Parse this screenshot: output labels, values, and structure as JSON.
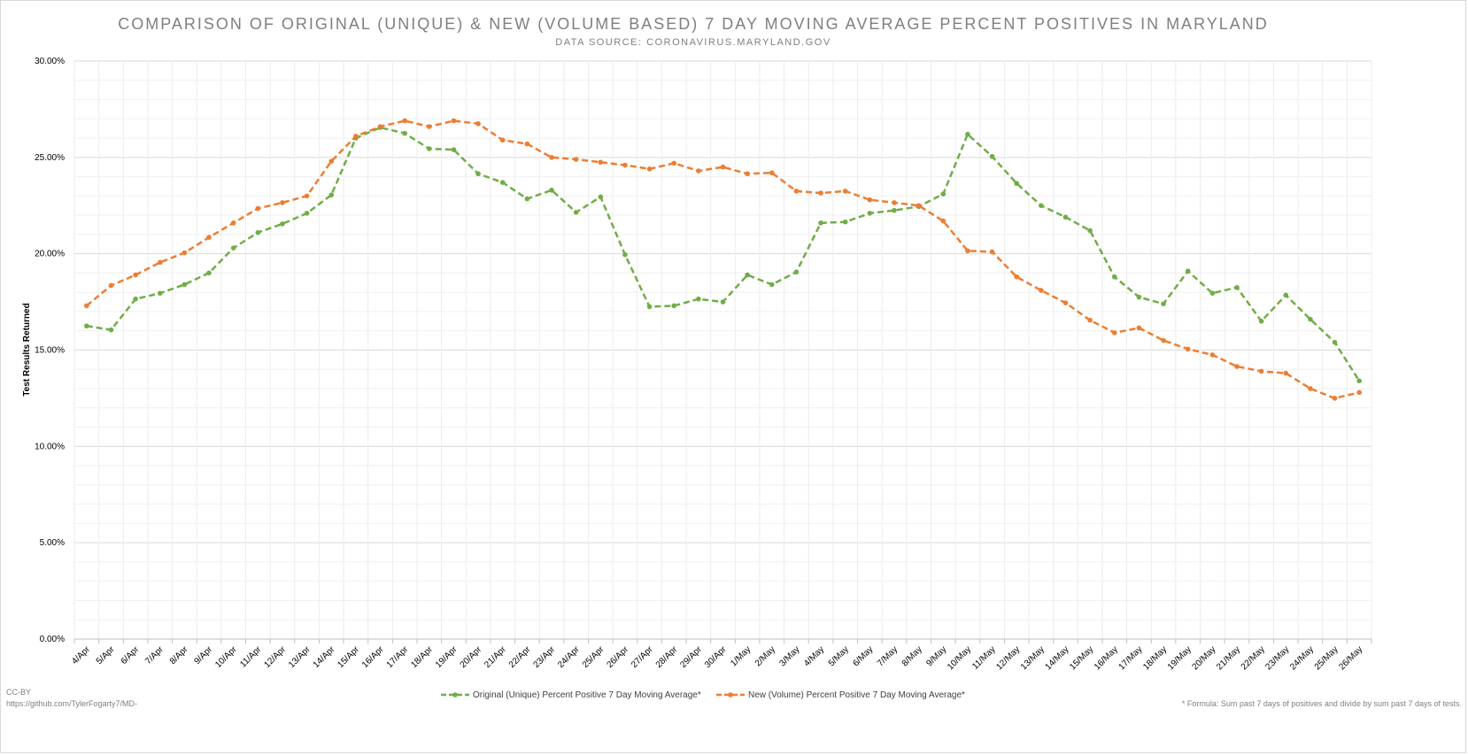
{
  "chart_data": {
    "type": "line",
    "title": "COMPARISON OF ORIGINAL (UNIQUE) & NEW (VOLUME BASED) 7 DAY MOVING AVERAGE PERCENT POSITIVES IN MARYLAND",
    "subtitle": "DATA SOURCE: CORONAVIRUS.MARYLAND.GOV",
    "xlabel": "",
    "ylabel": "Test Results Returned",
    "ylim": [
      0,
      0.3
    ],
    "yticks": [
      "0.00%",
      "5.00%",
      "10.00%",
      "15.00%",
      "20.00%",
      "25.00%",
      "30.00%"
    ],
    "grid": true,
    "legend_position": "bottom",
    "categories": [
      "4/Apr",
      "5/Apr",
      "6/Apr",
      "7/Apr",
      "8/Apr",
      "9/Apr",
      "10/Apr",
      "11/Apr",
      "12/Apr",
      "13/Apr",
      "14/Apr",
      "15/Apr",
      "16/Apr",
      "17/Apr",
      "18/Apr",
      "19/Apr",
      "20/Apr",
      "21/Apr",
      "22/Apr",
      "23/Apr",
      "24/Apr",
      "25/Apr",
      "26/Apr",
      "27/Apr",
      "28/Apr",
      "29/Apr",
      "30/Apr",
      "1/May",
      "2/May",
      "3/May",
      "4/May",
      "5/May",
      "6/May",
      "7/May",
      "8/May",
      "9/May",
      "10/May",
      "11/May",
      "12/May",
      "13/May",
      "14/May",
      "15/May",
      "16/May",
      "17/May",
      "18/May",
      "19/May",
      "20/May",
      "21/May",
      "22/May",
      "23/May",
      "24/May",
      "25/May",
      "26/May"
    ],
    "series": [
      {
        "name": "Original (Unique) Percent Positive 7 Day Moving Average*",
        "color": "#70ad47",
        "values": [
          0.1625,
          0.1605,
          0.1765,
          0.1795,
          0.184,
          0.19,
          0.203,
          0.211,
          0.2155,
          0.221,
          0.2305,
          0.26,
          0.2655,
          0.2625,
          0.2545,
          0.254,
          0.2415,
          0.237,
          0.2285,
          0.233,
          0.2215,
          0.2295,
          0.1995,
          0.1725,
          0.173,
          0.1765,
          0.175,
          0.189,
          0.184,
          0.1905,
          0.216,
          0.2165,
          0.221,
          0.2225,
          0.2245,
          0.231,
          0.262,
          0.2505,
          0.2365,
          0.225,
          0.219,
          0.212,
          0.188,
          0.1775,
          0.174,
          0.191,
          0.1795,
          0.1825,
          0.165,
          0.1785,
          0.166,
          0.154,
          0.134
        ]
      },
      {
        "name": "New (Volume) Percent Positive 7 Day Moving Average*",
        "color": "#ed7d31",
        "values": [
          0.173,
          0.1835,
          0.189,
          0.1955,
          0.2005,
          0.2085,
          0.216,
          0.2235,
          0.2265,
          0.23,
          0.248,
          0.261,
          0.266,
          0.269,
          0.266,
          0.269,
          0.2675,
          0.259,
          0.257,
          0.25,
          0.249,
          0.2475,
          0.246,
          0.244,
          0.247,
          0.243,
          0.245,
          0.2415,
          0.242,
          0.2325,
          0.2315,
          0.2325,
          0.228,
          0.2265,
          0.225,
          0.217,
          0.2015,
          0.201,
          0.188,
          0.181,
          0.1745,
          0.1655,
          0.159,
          0.1615,
          0.155,
          0.1505,
          0.1475,
          0.1415,
          0.139,
          0.138,
          0.13,
          0.125,
          0.128
        ]
      }
    ]
  },
  "footer": {
    "license": "CC-BY",
    "url": "https://github.com/TylerFogarty7/MD-",
    "formula_note": "* Formula: Sum past 7 days of positives and divide by sum past 7 days of tests."
  }
}
